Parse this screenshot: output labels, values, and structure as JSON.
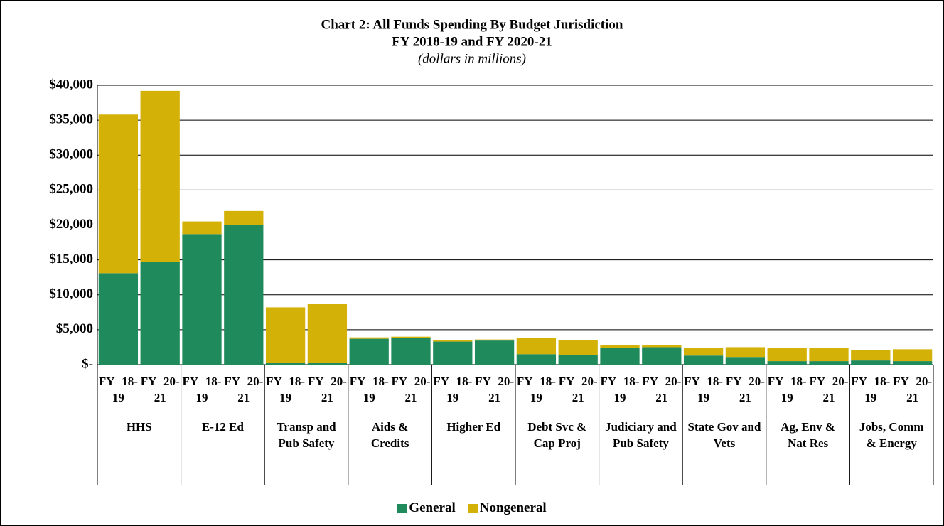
{
  "chart_data": {
    "type": "stacked_bar",
    "title": "Chart 2: All Funds Spending By Budget Jurisdiction",
    "subtitle": "FY 2018-19 and FY 2020-21",
    "units_note": "(dollars in millions)",
    "category_groups": [
      "HHS",
      "E-12 Ed",
      "Transp and Pub Safety",
      "Aids & Credits",
      "Higher Ed",
      "Debt Svc & Cap Proj",
      "Judiciary and Pub Safety",
      "State Gov and Vets",
      "Ag, Env & Nat Res",
      "Jobs, Comm & Energy"
    ],
    "categories": [
      "FY 18-19",
      "FY 20-21",
      "FY 18-19",
      "FY 20-21",
      "FY 18-19",
      "FY 20-21",
      "FY 18-19",
      "FY 20-21",
      "FY 18-19",
      "FY 20-21",
      "FY 18-19",
      "FY 20-21",
      "FY 18-19",
      "FY 20-21",
      "FY 18-19",
      "FY 20-21",
      "FY 18-19",
      "FY 20-21",
      "FY 18-19",
      "FY 20-21"
    ],
    "series": [
      {
        "name": "General",
        "color": "#1f8a5b",
        "values": [
          13100,
          14700,
          18700,
          20000,
          300,
          300,
          3700,
          3850,
          3300,
          3450,
          1500,
          1400,
          2400,
          2500,
          1300,
          1100,
          500,
          500,
          600,
          500
        ]
      },
      {
        "name": "Nongeneral",
        "color": "#d4b106",
        "values": [
          22700,
          24500,
          1800,
          2000,
          7900,
          8400,
          200,
          150,
          200,
          150,
          2300,
          2100,
          350,
          250,
          1100,
          1400,
          1900,
          1900,
          1500,
          1700
        ]
      }
    ],
    "ylim": [
      0,
      40000
    ],
    "yticks": [
      {
        "value": 0,
        "label": "$-"
      },
      {
        "value": 5000,
        "label": "$5,000"
      },
      {
        "value": 10000,
        "label": "$10,000"
      },
      {
        "value": 15000,
        "label": "$15,000"
      },
      {
        "value": 20000,
        "label": "$20,000"
      },
      {
        "value": 25000,
        "label": "$25,000"
      },
      {
        "value": 30000,
        "label": "$30,000"
      },
      {
        "value": 35000,
        "label": "$35,000"
      },
      {
        "value": 40000,
        "label": "$40,000"
      }
    ],
    "grid": true,
    "legend": "bottom"
  }
}
